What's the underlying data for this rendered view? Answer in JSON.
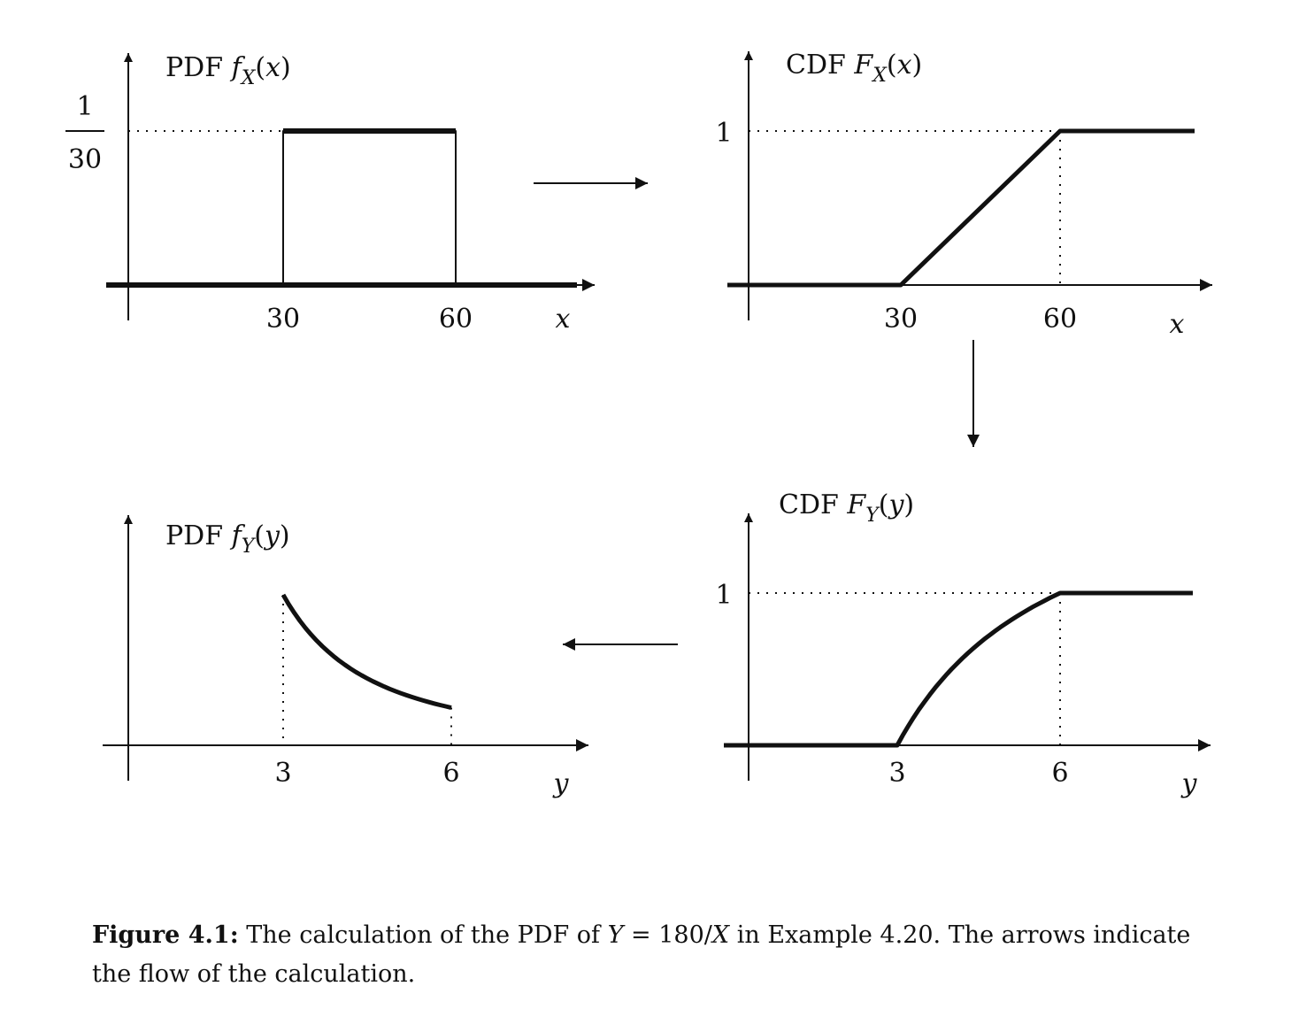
{
  "chart_data": [
    {
      "type": "line",
      "title": "PDF f_X(x)",
      "xlabel": "x",
      "x_ticks": [
        "30",
        "60"
      ],
      "y_ticks": [
        "1/30"
      ],
      "xlim": [
        0,
        80
      ],
      "ylim": [
        0,
        0.04
      ],
      "series": [
        {
          "x": [
            0,
            30,
            30,
            60,
            60,
            80
          ],
          "y": [
            0,
            0,
            0.0333,
            0.0333,
            0,
            0
          ]
        }
      ]
    },
    {
      "type": "line",
      "title": "CDF F_X(x)",
      "xlabel": "x",
      "x_ticks": [
        "30",
        "60"
      ],
      "y_ticks": [
        "1"
      ],
      "xlim": [
        0,
        80
      ],
      "ylim": [
        0,
        1.2
      ],
      "series": [
        {
          "x": [
            0,
            30,
            60,
            80
          ],
          "y": [
            0,
            0,
            1,
            1
          ]
        }
      ]
    },
    {
      "type": "line",
      "title": "CDF F_Y(y)",
      "xlabel": "y",
      "x_ticks": [
        "3",
        "6"
      ],
      "y_ticks": [
        "1"
      ],
      "xlim": [
        0,
        8
      ],
      "ylim": [
        0,
        1.2
      ],
      "series": [
        {
          "x": [
            0,
            3,
            3.5,
            4,
            4.5,
            5,
            5.5,
            6,
            8
          ],
          "y": [
            0,
            0,
            0.286,
            0.5,
            0.667,
            0.8,
            0.909,
            1,
            1
          ]
        }
      ]
    },
    {
      "type": "line",
      "title": "PDF f_Y(y)",
      "xlabel": "y",
      "x_ticks": [
        "3",
        "6"
      ],
      "xlim": [
        0,
        8
      ],
      "ylim": [
        0,
        0.25
      ],
      "series": [
        {
          "x": [
            3,
            3.5,
            4,
            4.5,
            5,
            5.5,
            6
          ],
          "y": [
            0.2,
            0.147,
            0.1125,
            0.0889,
            0.072,
            0.0595,
            0.05
          ]
        }
      ]
    }
  ],
  "caption": {
    "label": "Figure 4.1:",
    "text_before": " The calculation of the PDF of ",
    "Y": "Y",
    "equals": " = 180/",
    "X": "X",
    "text_after": " in Example 4.20. The arrows indicate the flow of the calculation."
  }
}
